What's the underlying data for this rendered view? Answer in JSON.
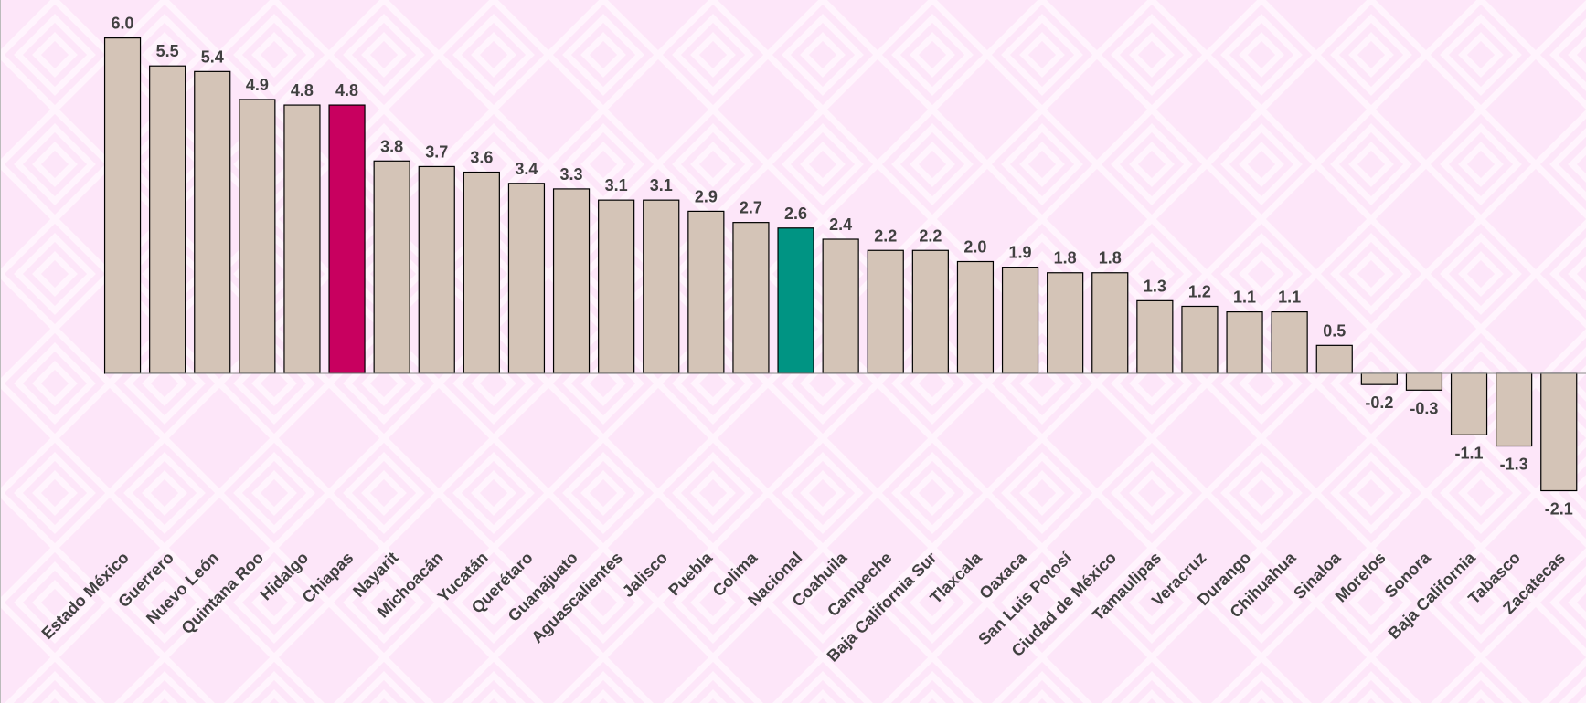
{
  "chart_data": {
    "type": "bar",
    "categories": [
      "Estado México",
      "Guerrero",
      "Nuevo León",
      "Quintana Roo",
      "Hidalgo",
      "Chiapas",
      "Nayarit",
      "Michoacán",
      "Yucatán",
      "Querétaro",
      "Guanajuato",
      "Aguascalientes",
      "Jalisco",
      "Puebla",
      "Colima",
      "Nacional",
      "Coahuila",
      "Campeche",
      "Baja California Sur",
      "Tlaxcala",
      "Oaxaca",
      "San Luis Potosí",
      "Ciudad de México",
      "Tamaulipas",
      "Veracruz",
      "Durango",
      "Chihuahua",
      "Sinaloa",
      "Morelos",
      "Sonora",
      "Baja California",
      "Tabasco",
      "Zacatecas"
    ],
    "values": [
      6.0,
      5.5,
      5.4,
      4.9,
      4.8,
      4.8,
      3.8,
      3.7,
      3.6,
      3.4,
      3.3,
      3.1,
      3.1,
      2.9,
      2.7,
      2.6,
      2.4,
      2.2,
      2.2,
      2.0,
      1.9,
      1.8,
      1.8,
      1.3,
      1.2,
      1.1,
      1.1,
      0.5,
      -0.2,
      -0.3,
      -1.1,
      -1.3,
      -2.1
    ],
    "value_labels": [
      "6.0",
      "5.5",
      "5.4",
      "4.9",
      "4.8",
      "4.8",
      "3.8",
      "3.7",
      "3.6",
      "3.4",
      "3.3",
      "3.1",
      "3.1",
      "2.9",
      "2.7",
      "2.6",
      "2.4",
      "2.2",
      "2.2",
      "2.0",
      "1.9",
      "1.8",
      "1.8",
      "1.3",
      "1.2",
      "1.1",
      "1.1",
      "0.5",
      "-0.2",
      "-0.3",
      "-1.1",
      "-1.3",
      "-2.1"
    ],
    "colors": [
      "#d4c4b7",
      "#d4c4b7",
      "#d4c4b7",
      "#d4c4b7",
      "#d4c4b7",
      "#c8005f",
      "#d4c4b7",
      "#d4c4b7",
      "#d4c4b7",
      "#d4c4b7",
      "#d4c4b7",
      "#d4c4b7",
      "#d4c4b7",
      "#d4c4b7",
      "#d4c4b7",
      "#009483",
      "#d4c4b7",
      "#d4c4b7",
      "#d4c4b7",
      "#d4c4b7",
      "#d4c4b7",
      "#d4c4b7",
      "#d4c4b7",
      "#d4c4b7",
      "#d4c4b7",
      "#d4c4b7",
      "#d4c4b7",
      "#d4c4b7",
      "#d4c4b7",
      "#d4c4b7",
      "#d4c4b7",
      "#d4c4b7",
      "#d4c4b7"
    ],
    "ylim": [
      -2.5,
      6.5
    ]
  }
}
